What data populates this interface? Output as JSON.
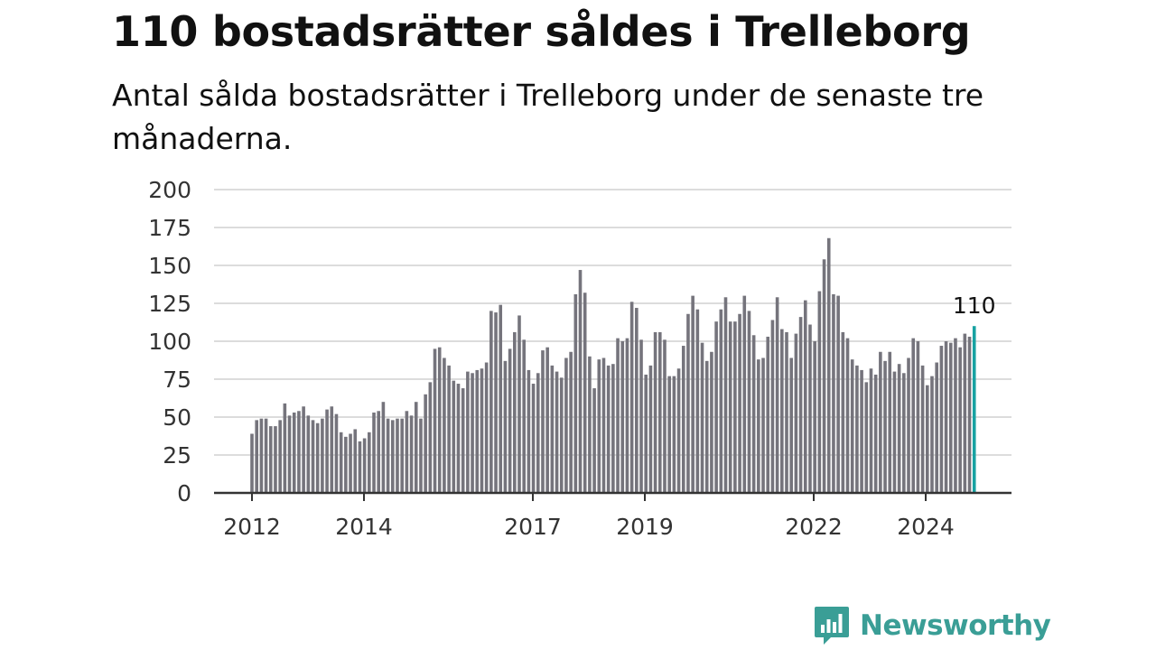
{
  "header": {
    "title": "110 bostadsrätter såldes i Trelleborg",
    "subtitle": "Antal sålda bostadsrätter i Trelleborg under de senaste tre månaderna."
  },
  "brand": {
    "name": "Newsworthy",
    "icon": "newsworthy-logo-icon",
    "color": "#3a9e96"
  },
  "colors": {
    "bar": "#75747c",
    "highlight": "#17a2a2",
    "grid": "#dcdcdc",
    "axis": "#333333"
  },
  "chart_data": {
    "type": "bar",
    "title": "110 bostadsrätter såldes i Trelleborg",
    "subtitle": "Antal sålda bostadsrätter i Trelleborg under de senaste tre månaderna.",
    "xlabel": "",
    "ylabel": "",
    "ylim": [
      0,
      200
    ],
    "yticks": [
      0,
      25,
      50,
      75,
      100,
      125,
      150,
      175,
      200
    ],
    "xtick_labels": [
      "2012",
      "2014",
      "2017",
      "2019",
      "2022",
      "2024"
    ],
    "grid": true,
    "highlight_last": true,
    "last_label": "110",
    "values": [
      39,
      48,
      49,
      49,
      44,
      44,
      48,
      59,
      51,
      53,
      54,
      57,
      51,
      48,
      46,
      49,
      55,
      57,
      52,
      40,
      37,
      39,
      42,
      34,
      36,
      40,
      53,
      54,
      60,
      49,
      48,
      49,
      49,
      54,
      51,
      60,
      49,
      65,
      73,
      95,
      96,
      89,
      84,
      74,
      72,
      69,
      80,
      79,
      81,
      82,
      86,
      120,
      119,
      124,
      87,
      95,
      106,
      117,
      101,
      81,
      72,
      79,
      94,
      96,
      84,
      80,
      76,
      89,
      93,
      131,
      147,
      132,
      90,
      69,
      88,
      89,
      84,
      85,
      102,
      100,
      102,
      126,
      122,
      101,
      78,
      84,
      106,
      106,
      101,
      77,
      77,
      82,
      97,
      118,
      130,
      121,
      99,
      87,
      93,
      113,
      121,
      129,
      113,
      113,
      118,
      130,
      120,
      104,
      88,
      89,
      103,
      114,
      129,
      108,
      106,
      89,
      105,
      116,
      127,
      111,
      100,
      133,
      154,
      168,
      131,
      130,
      106,
      102,
      88,
      84,
      81,
      73,
      82,
      78,
      93,
      87,
      93,
      80,
      85,
      79,
      89,
      102,
      100,
      84,
      71,
      77,
      86,
      97,
      100,
      99,
      102,
      96,
      105,
      103,
      110
    ]
  }
}
